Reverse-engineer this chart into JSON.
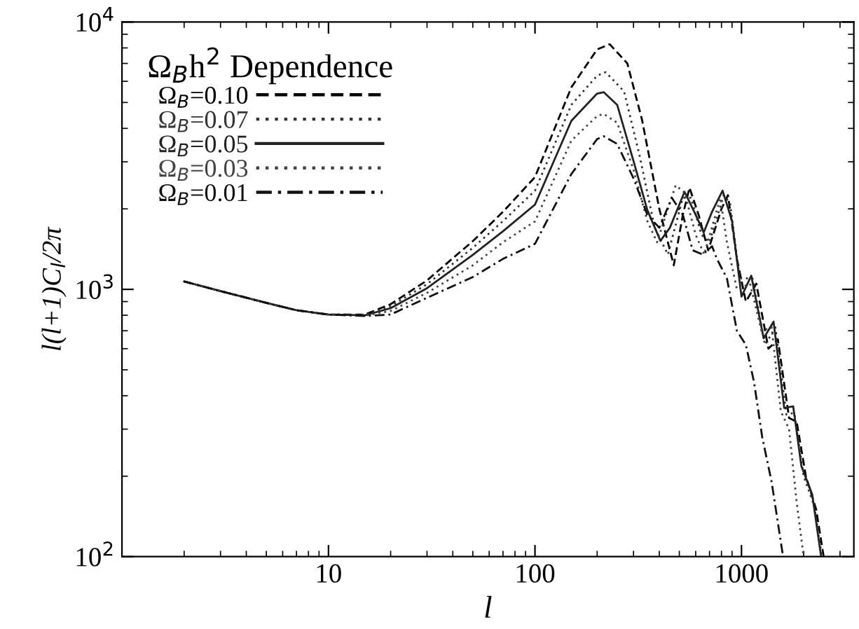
{
  "chart_data": {
    "type": "line",
    "xlabel": "l",
    "ylabel": "l(l+1)C$_{l}$/2π",
    "legend_title": "Ω$_{B}$h$^{2}$ Dependence",
    "log": "xy",
    "grid": false,
    "legend": "top left",
    "marker": "none",
    "xlim": [
      1,
      3500
    ],
    "xticks": [
      10,
      100,
      1000
    ],
    "ylim": [
      100,
      10000
    ],
    "yticks": [
      {
        "value": 100,
        "label": "10$^{2}$"
      },
      {
        "value": 1000,
        "label": "10$^{3}$"
      },
      {
        "value": 10000,
        "label": "10$^{4}$"
      }
    ],
    "series": [
      {
        "name": "Ω$_{B}$=0.10",
        "color": "#000000",
        "line_style": "dashed",
        "x": [
          2,
          3,
          5,
          7,
          10,
          15,
          20,
          30,
          50,
          70,
          100,
          150,
          200,
          230,
          280,
          330,
          400,
          470,
          520,
          560,
          620,
          690,
          800,
          860,
          950,
          1050,
          1180,
          1350,
          1500,
          1700,
          1850,
          2050,
          2300,
          2500
        ],
        "values": [
          1070,
          985,
          890,
          835,
          805,
          805,
          880,
          1080,
          1515,
          1950,
          2630,
          5700,
          7900,
          8260,
          7000,
          4300,
          2000,
          1230,
          1900,
          2400,
          1900,
          1400,
          2000,
          2250,
          1300,
          900,
          1050,
          600,
          650,
          330,
          320,
          200,
          150,
          100
        ]
      },
      {
        "name": "Ω$_{B}$=0.07",
        "color": "#333333",
        "line_style": "dotted",
        "x": [
          2,
          3,
          5,
          7,
          10,
          15,
          20,
          30,
          50,
          70,
          100,
          150,
          200,
          220,
          270,
          320,
          380,
          440,
          520,
          570,
          640,
          700,
          820,
          880,
          980,
          1130,
          1300,
          1460,
          1650,
          1800,
          2000,
          2250,
          2450
        ],
        "values": [
          1070,
          985,
          890,
          835,
          805,
          803,
          865,
          1045,
          1430,
          1800,
          2340,
          4900,
          6300,
          6490,
          5500,
          3200,
          1700,
          1350,
          2200,
          2200,
          1600,
          1500,
          2250,
          2100,
          1100,
          1100,
          620,
          720,
          340,
          345,
          200,
          155,
          100
        ]
      },
      {
        "name": "Ω$_{B}$=0.05",
        "color": "#222222",
        "line_style": "solid",
        "x": [
          2,
          3,
          5,
          7,
          10,
          15,
          20,
          30,
          50,
          70,
          100,
          150,
          200,
          215,
          250,
          300,
          350,
          405,
          450,
          530,
          600,
          656,
          720,
          810,
          900,
          1000,
          1115,
          1280,
          1430,
          1610,
          1780,
          1950,
          2200,
          2430
        ],
        "values": [
          1070,
          985,
          890,
          835,
          805,
          800,
          850,
          1010,
          1345,
          1650,
          2075,
          4270,
          5400,
          5465,
          4900,
          3020,
          1980,
          1518,
          1700,
          2318,
          1900,
          1632,
          1950,
          2340,
          1800,
          940,
          1125,
          656,
          757,
          360,
          365,
          218,
          171,
          100
        ]
      },
      {
        "name": "Ω$_{B}$=0.03",
        "color": "#444444",
        "line_style": "dotted",
        "x": [
          2,
          3,
          5,
          7,
          10,
          15,
          20,
          30,
          50,
          70,
          100,
          150,
          200,
          215,
          250,
          300,
          350,
          390,
          480,
          530,
          600,
          660,
          790,
          850,
          950,
          1100,
          1250,
          1400,
          1550,
          1700,
          1850,
          2000
        ],
        "values": [
          1070,
          985,
          890,
          835,
          805,
          797,
          830,
          970,
          1230,
          1500,
          1795,
          3600,
          4450,
          4530,
          4200,
          2800,
          1800,
          1500,
          2450,
          2300,
          1600,
          1350,
          2200,
          1500,
          1000,
          1050,
          700,
          720,
          350,
          300,
          160,
          100
        ]
      },
      {
        "name": "Ω$_{B}$=0.01",
        "color": "#111111",
        "line_style": "dashdot",
        "x": [
          2,
          3,
          5,
          7,
          10,
          15,
          20,
          30,
          50,
          70,
          100,
          150,
          200,
          215,
          250,
          300,
          350,
          400,
          460,
          520,
          580,
          650,
          720,
          760,
          850,
          950,
          1050,
          1150,
          1260,
          1400,
          1590
        ],
        "values": [
          1070,
          985,
          890,
          835,
          805,
          795,
          805,
          930,
          1112,
          1300,
          1480,
          2700,
          3650,
          3740,
          3500,
          2600,
          1900,
          1700,
          2200,
          1900,
          1400,
          1350,
          1450,
          1300,
          1100,
          700,
          620,
          450,
          280,
          190,
          100
        ]
      }
    ]
  }
}
